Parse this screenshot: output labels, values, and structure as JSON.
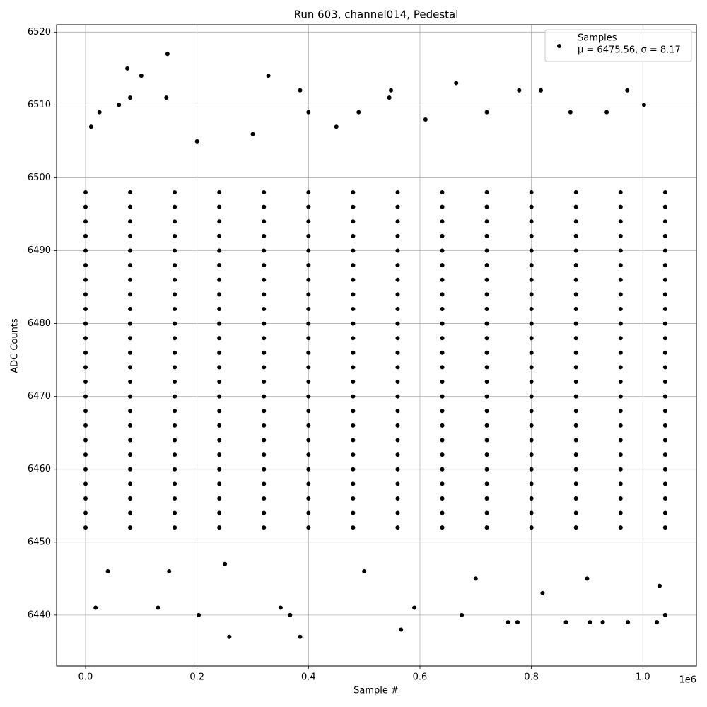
{
  "chart_data": {
    "type": "scatter",
    "title": "Run 603, channel014, Pedestal",
    "x_label": "Sample #",
    "y_label": "ADC Counts",
    "x_offset_label": "1e6",
    "annotation": "μ = 6475.56, σ = 8.17",
    "legend": "upper right",
    "grid": true,
    "xlim": [
      -52000,
      1096000
    ],
    "ylim": [
      6433,
      6521
    ],
    "xticks": [
      {
        "value": 0,
        "label": "0.0"
      },
      {
        "value": 200000,
        "label": "0.2"
      },
      {
        "value": 400000,
        "label": "0.4"
      },
      {
        "value": 600000,
        "label": "0.6"
      },
      {
        "value": 800000,
        "label": "0.8"
      },
      {
        "value": 1000000,
        "label": "1.0"
      }
    ],
    "yticks": [
      6440,
      6450,
      6460,
      6470,
      6480,
      6490,
      6500,
      6510,
      6520
    ],
    "series": [
      {
        "name": "Samples",
        "color": "#000000",
        "x": [
          0,
          80000,
          160000,
          240000,
          320000,
          400000,
          480000,
          560000,
          640000,
          720000,
          800000,
          880000,
          960000,
          1040000,
          0,
          80000,
          160000,
          240000,
          320000,
          400000,
          480000,
          560000,
          640000,
          720000,
          800000,
          880000,
          960000,
          1040000,
          0,
          80000,
          160000,
          240000,
          320000,
          400000,
          480000,
          560000,
          640000,
          720000,
          800000,
          880000,
          960000,
          1040000,
          0,
          80000,
          160000,
          240000,
          320000,
          400000,
          480000,
          560000,
          640000,
          720000,
          800000,
          880000,
          960000,
          1040000,
          0,
          80000,
          160000,
          240000,
          320000,
          400000,
          480000,
          560000,
          640000,
          720000,
          800000,
          880000,
          960000,
          1040000,
          0,
          80000,
          160000,
          240000,
          320000,
          400000,
          480000,
          560000,
          640000,
          720000,
          800000,
          880000,
          960000,
          1040000,
          0,
          80000,
          160000,
          240000,
          320000,
          400000,
          480000,
          560000,
          640000,
          720000,
          800000,
          880000,
          960000,
          1040000,
          0,
          80000,
          160000,
          240000,
          320000,
          400000,
          480000,
          560000,
          640000,
          720000,
          800000,
          880000,
          960000,
          1040000,
          0,
          80000,
          160000,
          240000,
          320000,
          400000,
          480000,
          560000,
          640000,
          720000,
          800000,
          880000,
          960000,
          1040000,
          0,
          80000,
          160000,
          240000,
          320000,
          400000,
          480000,
          560000,
          640000,
          720000,
          800000,
          880000,
          960000,
          1040000,
          0,
          80000,
          160000,
          240000,
          320000,
          400000,
          480000,
          560000,
          640000,
          720000,
          800000,
          880000,
          960000,
          1040000,
          0,
          80000,
          160000,
          240000,
          320000,
          400000,
          480000,
          560000,
          640000,
          720000,
          800000,
          880000,
          960000,
          1040000,
          0,
          80000,
          160000,
          240000,
          320000,
          400000,
          480000,
          560000,
          640000,
          720000,
          800000,
          880000,
          960000,
          1040000,
          0,
          80000,
          160000,
          240000,
          320000,
          400000,
          480000,
          560000,
          640000,
          720000,
          800000,
          880000,
          960000,
          1040000,
          0,
          80000,
          160000,
          240000,
          320000,
          400000,
          480000,
          560000,
          640000,
          720000,
          800000,
          880000,
          960000,
          1040000,
          0,
          80000,
          160000,
          240000,
          320000,
          400000,
          480000,
          560000,
          640000,
          720000,
          800000,
          880000,
          960000,
          1040000,
          0,
          80000,
          160000,
          240000,
          320000,
          400000,
          480000,
          560000,
          640000,
          720000,
          800000,
          880000,
          960000,
          1040000,
          0,
          80000,
          160000,
          240000,
          320000,
          400000,
          480000,
          560000,
          640000,
          720000,
          800000,
          880000,
          960000,
          1040000,
          0,
          80000,
          160000,
          240000,
          320000,
          400000,
          480000,
          560000,
          640000,
          720000,
          800000,
          880000,
          960000,
          1040000,
          0,
          80000,
          160000,
          240000,
          320000,
          400000,
          480000,
          560000,
          640000,
          720000,
          800000,
          880000,
          960000,
          1040000,
          0,
          80000,
          160000,
          240000,
          320000,
          400000,
          480000,
          560000,
          640000,
          720000,
          800000,
          880000,
          960000,
          1040000,
          0,
          80000,
          160000,
          240000,
          320000,
          400000,
          480000,
          560000,
          640000,
          720000,
          800000,
          880000,
          960000,
          1040000,
          0,
          80000,
          160000,
          240000,
          320000,
          400000,
          480000,
          560000,
          640000,
          720000,
          800000,
          880000,
          960000,
          1040000,
          0,
          80000,
          160000,
          240000,
          320000,
          400000,
          480000,
          560000,
          640000,
          720000,
          800000,
          880000,
          960000,
          1040000,
          75000,
          100000,
          147000,
          80000,
          145000,
          328000,
          385000,
          548000,
          665000,
          778000,
          817000,
          972000,
          1002000,
          545000,
          60000,
          18000,
          203000,
          258000,
          385000,
          566000,
          675000,
          758000,
          775000,
          862000,
          905000,
          928000,
          973000,
          1025000,
          1040000,
          130000,
          350000,
          590000,
          367000,
          820000,
          25000,
          400000,
          490000,
          720000,
          870000,
          935000,
          610000,
          200000,
          300000,
          450000,
          10000,
          40000,
          150000,
          250000,
          500000,
          700000,
          900000,
          1030000
        ],
        "values": [
          6452,
          6452,
          6452,
          6452,
          6452,
          6452,
          6452,
          6452,
          6452,
          6452,
          6452,
          6452,
          6452,
          6452,
          6454,
          6454,
          6454,
          6454,
          6454,
          6454,
          6454,
          6454,
          6454,
          6454,
          6454,
          6454,
          6454,
          6454,
          6456,
          6456,
          6456,
          6456,
          6456,
          6456,
          6456,
          6456,
          6456,
          6456,
          6456,
          6456,
          6456,
          6456,
          6458,
          6458,
          6458,
          6458,
          6458,
          6458,
          6458,
          6458,
          6458,
          6458,
          6458,
          6458,
          6458,
          6458,
          6460,
          6460,
          6460,
          6460,
          6460,
          6460,
          6460,
          6460,
          6460,
          6460,
          6460,
          6460,
          6460,
          6460,
          6462,
          6462,
          6462,
          6462,
          6462,
          6462,
          6462,
          6462,
          6462,
          6462,
          6462,
          6462,
          6462,
          6462,
          6464,
          6464,
          6464,
          6464,
          6464,
          6464,
          6464,
          6464,
          6464,
          6464,
          6464,
          6464,
          6464,
          6464,
          6466,
          6466,
          6466,
          6466,
          6466,
          6466,
          6466,
          6466,
          6466,
          6466,
          6466,
          6466,
          6466,
          6466,
          6468,
          6468,
          6468,
          6468,
          6468,
          6468,
          6468,
          6468,
          6468,
          6468,
          6468,
          6468,
          6468,
          6468,
          6470,
          6470,
          6470,
          6470,
          6470,
          6470,
          6470,
          6470,
          6470,
          6470,
          6470,
          6470,
          6470,
          6470,
          6472,
          6472,
          6472,
          6472,
          6472,
          6472,
          6472,
          6472,
          6472,
          6472,
          6472,
          6472,
          6472,
          6472,
          6474,
          6474,
          6474,
          6474,
          6474,
          6474,
          6474,
          6474,
          6474,
          6474,
          6474,
          6474,
          6474,
          6474,
          6476,
          6476,
          6476,
          6476,
          6476,
          6476,
          6476,
          6476,
          6476,
          6476,
          6476,
          6476,
          6476,
          6476,
          6478,
          6478,
          6478,
          6478,
          6478,
          6478,
          6478,
          6478,
          6478,
          6478,
          6478,
          6478,
          6478,
          6478,
          6480,
          6480,
          6480,
          6480,
          6480,
          6480,
          6480,
          6480,
          6480,
          6480,
          6480,
          6480,
          6480,
          6480,
          6482,
          6482,
          6482,
          6482,
          6482,
          6482,
          6482,
          6482,
          6482,
          6482,
          6482,
          6482,
          6482,
          6482,
          6484,
          6484,
          6484,
          6484,
          6484,
          6484,
          6484,
          6484,
          6484,
          6484,
          6484,
          6484,
          6484,
          6484,
          6486,
          6486,
          6486,
          6486,
          6486,
          6486,
          6486,
          6486,
          6486,
          6486,
          6486,
          6486,
          6486,
          6486,
          6488,
          6488,
          6488,
          6488,
          6488,
          6488,
          6488,
          6488,
          6488,
          6488,
          6488,
          6488,
          6488,
          6488,
          6490,
          6490,
          6490,
          6490,
          6490,
          6490,
          6490,
          6490,
          6490,
          6490,
          6490,
          6490,
          6490,
          6490,
          6492,
          6492,
          6492,
          6492,
          6492,
          6492,
          6492,
          6492,
          6492,
          6492,
          6492,
          6492,
          6492,
          6492,
          6494,
          6494,
          6494,
          6494,
          6494,
          6494,
          6494,
          6494,
          6494,
          6494,
          6494,
          6494,
          6494,
          6494,
          6496,
          6496,
          6496,
          6496,
          6496,
          6496,
          6496,
          6496,
          6496,
          6496,
          6496,
          6496,
          6496,
          6496,
          6498,
          6498,
          6498,
          6498,
          6498,
          6498,
          6498,
          6498,
          6498,
          6498,
          6498,
          6498,
          6498,
          6498,
          6515,
          6514,
          6517,
          6511,
          6511,
          6514,
          6512,
          6512,
          6513,
          6512,
          6512,
          6512,
          6510,
          6511,
          6510,
          6441,
          6440,
          6437,
          6437,
          6438,
          6440,
          6439,
          6439,
          6439,
          6439,
          6439,
          6439,
          6439,
          6440,
          6441,
          6441,
          6441,
          6440,
          6443,
          6509,
          6509,
          6509,
          6509,
          6509,
          6509,
          6508,
          6505,
          6506,
          6507,
          6507,
          6446,
          6446,
          6447,
          6446,
          6445,
          6445,
          6444
        ]
      }
    ]
  }
}
